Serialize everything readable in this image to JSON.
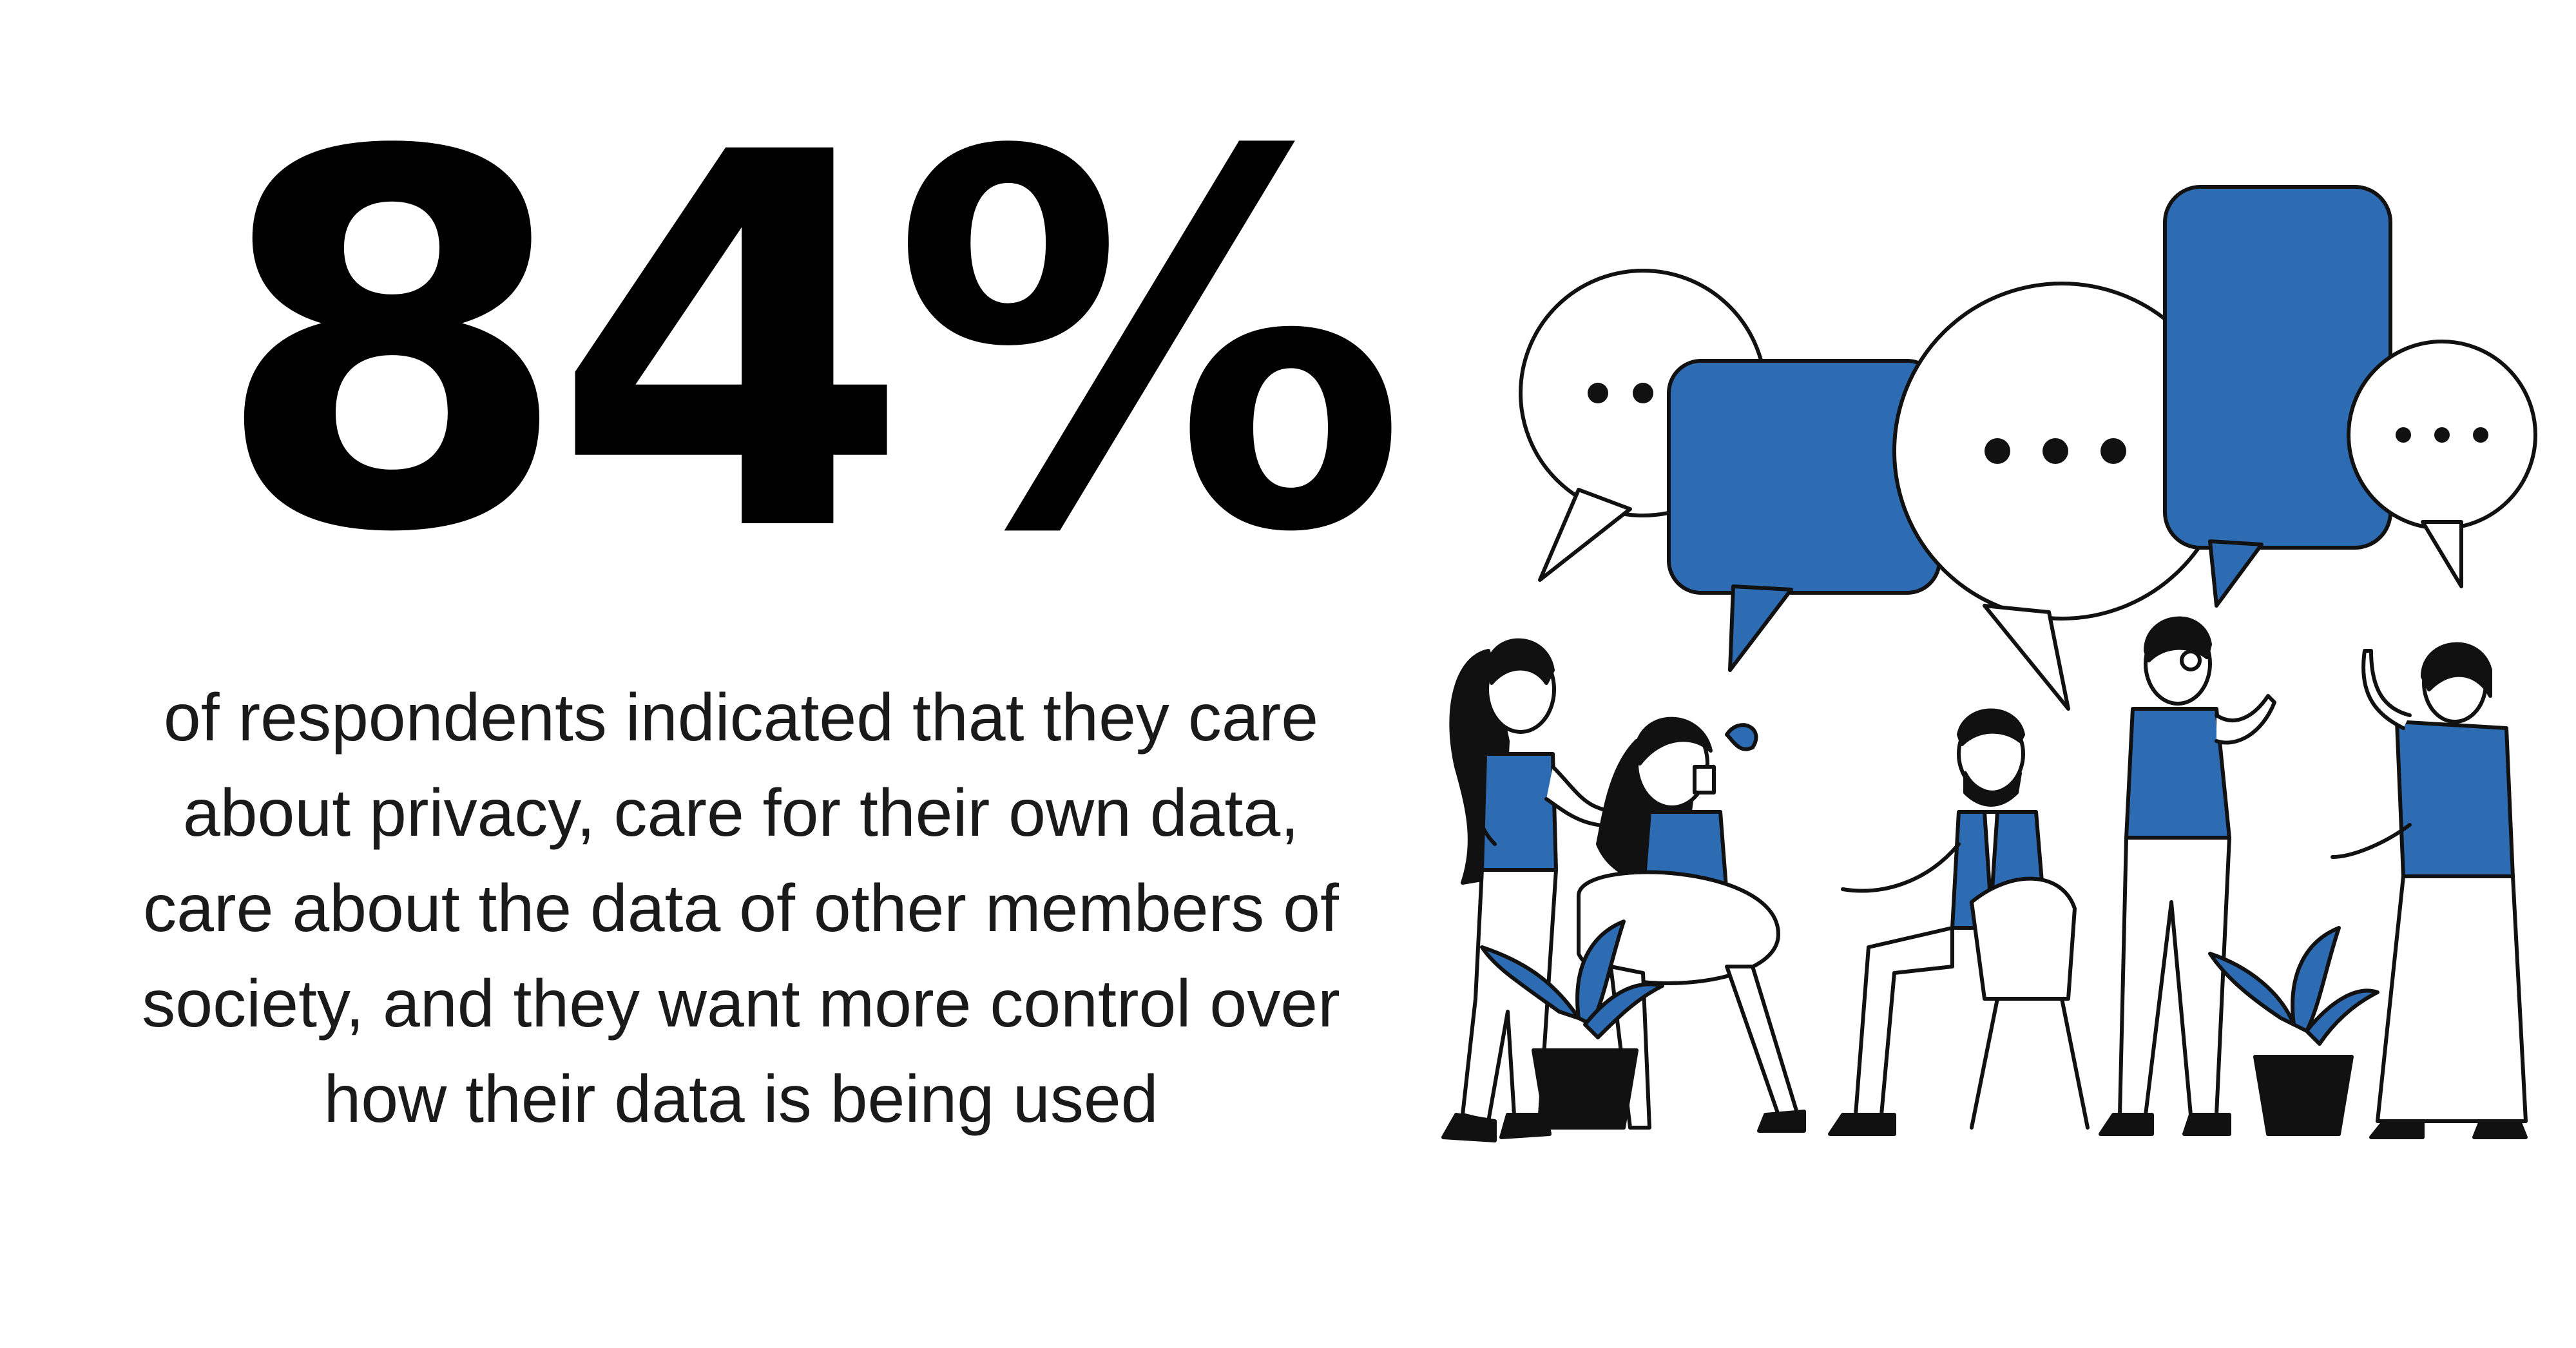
{
  "stat": {
    "value": "84%"
  },
  "caption": "of respondents indicated that they care about privacy, care for their own data, care about the data of other members of society, and they want more control over how their data is being used",
  "illustration": {
    "icon": "people-conversation-illustration",
    "accent": "#2d6bb3",
    "ink": "#111111"
  }
}
